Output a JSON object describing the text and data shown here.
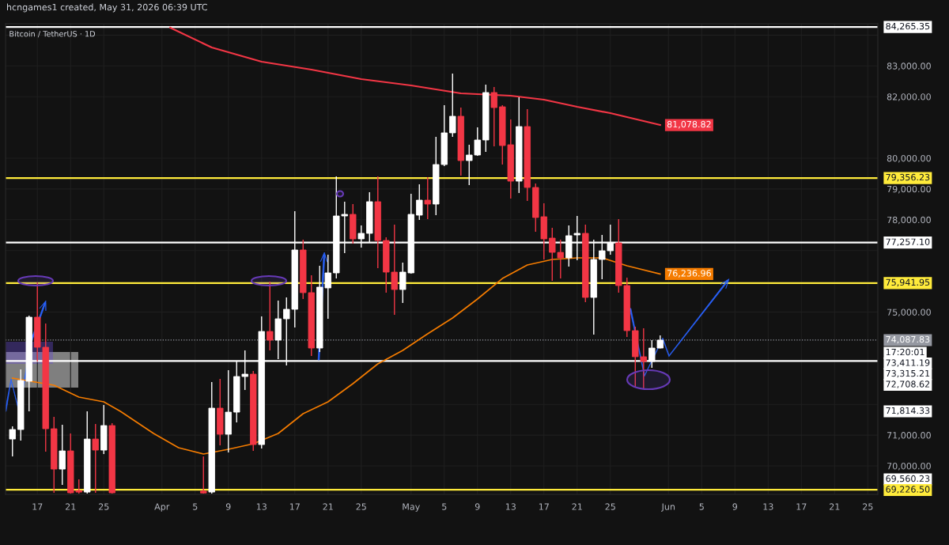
{
  "chart_data": {
    "type": "candlestick",
    "title": "hcngames1 created, May 31, 2026 06:39 UTC",
    "subtitle": "Bitcoin / TetherUS · 1D",
    "series": [
      {
        "x": [
          "2026-03-14",
          "2026-03-15",
          "2026-03-16",
          "2026-03-17",
          "2026-03-18",
          "2026-03-19",
          "2026-03-20",
          "2026-03-21",
          "2026-03-22",
          "2026-03-23",
          "2026-03-24",
          "2026-03-25",
          "2026-03-26",
          "2026-04-06",
          "2026-04-07",
          "2026-04-08",
          "2026-04-09",
          "2026-04-10",
          "2026-04-11",
          "2026-04-12",
          "2026-04-13",
          "2026-04-14",
          "2026-04-15",
          "2026-04-16",
          "2026-04-17",
          "2026-04-18",
          "2026-04-19",
          "2026-04-20",
          "2026-04-21",
          "2026-04-22",
          "2026-04-23",
          "2026-04-24",
          "2026-04-25",
          "2026-04-26",
          "2026-04-27",
          "2026-04-28",
          "2026-04-29",
          "2026-04-30",
          "2026-05-01",
          "2026-05-02",
          "2026-05-03",
          "2026-05-04",
          "2026-05-05",
          "2026-05-06",
          "2026-05-07",
          "2026-05-08",
          "2026-05-09",
          "2026-05-10",
          "2026-05-11",
          "2026-05-12",
          "2026-05-13",
          "2026-05-14",
          "2026-05-15",
          "2026-05-16",
          "2026-05-17",
          "2026-05-18",
          "2026-05-19",
          "2026-05-20",
          "2026-05-21",
          "2026-05-22",
          "2026-05-23",
          "2026-05-24",
          "2026-05-25",
          "2026-05-26",
          "2026-05-27",
          "2026-05-28",
          "2026-05-29",
          "2026-05-30",
          "2026-05-31"
        ],
        "ohlc": [
          [
            70874,
            71285,
            70308,
            71183
          ],
          [
            71183,
            73136,
            70823,
            72776
          ],
          [
            72751,
            74884,
            71774,
            74833
          ],
          [
            74833,
            75964,
            73393,
            73856
          ],
          [
            73856,
            74627,
            70463,
            71208
          ],
          [
            71208,
            71594,
            69126,
            69897
          ],
          [
            69897,
            71337,
            69383,
            70488
          ],
          [
            70488,
            71054,
            69100,
            69126
          ],
          [
            69200,
            69563,
            69100,
            69150
          ],
          [
            69150,
            71774,
            69100,
            70874
          ],
          [
            70874,
            71362,
            69126,
            70514
          ],
          [
            70514,
            71979,
            70386,
            71311
          ],
          [
            71311,
            71388,
            69100,
            69126
          ],
          [
            69180,
            70308,
            69100,
            69120
          ],
          [
            69150,
            72725,
            69100,
            71877
          ],
          [
            71877,
            72828,
            70668,
            71028
          ],
          [
            71028,
            73111,
            70437,
            71748
          ],
          [
            71748,
            73393,
            71414,
            72905
          ],
          [
            72905,
            73753,
            72468,
            72982
          ],
          [
            72982,
            73085,
            70488,
            70694
          ],
          [
            70694,
            74859,
            70566,
            74370
          ],
          [
            74370,
            75990,
            73753,
            74087
          ],
          [
            74087,
            75373,
            73470,
            74781
          ],
          [
            74781,
            75476,
            73265,
            75090
          ],
          [
            75090,
            78278,
            74499,
            77018
          ],
          [
            77018,
            77352,
            75424,
            75630
          ],
          [
            75630,
            76195,
            73573,
            73830
          ],
          [
            73830,
            76504,
            73702,
            75810
          ],
          [
            75784,
            76864,
            74781,
            76272
          ],
          [
            76272,
            79409,
            76092,
            78123
          ],
          [
            78123,
            78586,
            76915,
            78175
          ],
          [
            78175,
            78509,
            77224,
            77378
          ],
          [
            77378,
            77815,
            77095,
            77558
          ],
          [
            77558,
            78894,
            77249,
            78586
          ],
          [
            78586,
            79409,
            76427,
            77326
          ],
          [
            77326,
            77429,
            75630,
            76298
          ],
          [
            76298,
            77841,
            74910,
            75733
          ],
          [
            75733,
            76607,
            75296,
            76298
          ],
          [
            76272,
            78843,
            76250,
            78175
          ],
          [
            78149,
            79152,
            77995,
            78637
          ],
          [
            78637,
            79383,
            78021,
            78509
          ],
          [
            78509,
            80694,
            78149,
            79794
          ],
          [
            79794,
            81722,
            79743,
            80823
          ],
          [
            80823,
            82751,
            80694,
            81363
          ],
          [
            81363,
            81645,
            79434,
            79923
          ],
          [
            79923,
            80437,
            79126,
            80103
          ],
          [
            80103,
            81003,
            80077,
            80591
          ],
          [
            80591,
            82391,
            80206,
            82134
          ],
          [
            82134,
            82314,
            80386,
            81645
          ],
          [
            81671,
            81722,
            79794,
            80411
          ],
          [
            80437,
            81260,
            78689,
            79254
          ],
          [
            79254,
            81979,
            78869,
            81028
          ],
          [
            81028,
            81594,
            78612,
            79049
          ],
          [
            79049,
            79177,
            77609,
            78072
          ],
          [
            78098,
            78535,
            76710,
            77378
          ],
          [
            77404,
            77738,
            76015,
            76941
          ],
          [
            76941,
            77352,
            76092,
            76761
          ],
          [
            76761,
            77815,
            76478,
            77481
          ],
          [
            77506,
            78123,
            76684,
            77558
          ],
          [
            77558,
            77841,
            75321,
            75476
          ],
          [
            75476,
            77352,
            74267,
            76710
          ],
          [
            76710,
            77506,
            76067,
            76992
          ],
          [
            76992,
            77841,
            76864,
            77249
          ],
          [
            77249,
            78021,
            75630,
            75861
          ],
          [
            75861,
            76118,
            74190,
            74396
          ],
          [
            74396,
            74524,
            72545,
            73548
          ],
          [
            73548,
            74473,
            72494,
            73393
          ],
          [
            73393,
            74087,
            73188,
            73830
          ],
          [
            73830,
            74242,
            73820,
            74087.83
          ]
        ],
        "colors": [
          "#ffffff",
          "#ffffff",
          "#ffffff",
          "#f23645",
          "#f23645",
          "#f23645",
          "#ffffff",
          "#f23645",
          "#f23645",
          "#ffffff",
          "#f23645",
          "#ffffff",
          "#f23645",
          "#f23645",
          "#ffffff",
          "#f23645",
          "#ffffff",
          "#ffffff",
          "#ffffff",
          "#f23645",
          "#ffffff",
          "#f23645",
          "#ffffff",
          "#ffffff",
          "#ffffff",
          "#f23645",
          "#f23645",
          "#ffffff",
          "#ffffff",
          "#ffffff",
          "#ffffff",
          "#f23645",
          "#ffffff",
          "#ffffff",
          "#f23645",
          "#f23645",
          "#f23645",
          "#ffffff",
          "#ffffff",
          "#ffffff",
          "#f23645",
          "#ffffff",
          "#ffffff",
          "#ffffff",
          "#f23645",
          "#ffffff",
          "#ffffff",
          "#ffffff",
          "#f23645",
          "#f23645",
          "#f23645",
          "#ffffff",
          "#f23645",
          "#f23645",
          "#f23645",
          "#f23645",
          "#f23645",
          "#ffffff",
          "#ffffff",
          "#f23645",
          "#ffffff",
          "#ffffff",
          "#ffffff",
          "#f23645",
          "#f23645",
          "#f23645",
          "#f23645",
          "#ffffff",
          "#ffffff"
        ]
      },
      {
        "type": "line",
        "color": "#f23645",
        "x": [
          "2026-04-02",
          "2026-04-07",
          "2026-04-13",
          "2026-04-19",
          "2026-04-25",
          "2026-05-01",
          "2026-05-07",
          "2026-05-13",
          "2026-05-17",
          "2026-05-21",
          "2026-05-25",
          "2026-05-31"
        ],
        "values": [
          84242,
          83599,
          83136,
          82879,
          82571,
          82365,
          82108,
          82031,
          81902,
          81671,
          81465,
          81078.82
        ],
        "value_labels": [
          null,
          null,
          null,
          null,
          null,
          null,
          null,
          null,
          null,
          null,
          null,
          "81,078.82"
        ]
      },
      {
        "type": "line",
        "color": "#f57c00",
        "x": [
          "2026-03-14",
          "2026-03-19",
          "2026-03-22",
          "2026-03-25",
          "2026-03-27",
          "2026-03-31",
          "2026-04-03",
          "2026-04-06",
          "2026-04-09",
          "2026-04-12",
          "2026-04-15",
          "2026-04-18",
          "2026-04-21",
          "2026-04-24",
          "2026-04-27",
          "2026-04-30",
          "2026-05-03",
          "2026-05-06",
          "2026-05-09",
          "2026-05-12",
          "2026-05-15",
          "2026-05-18",
          "2026-05-21",
          "2026-05-24",
          "2026-05-27",
          "2026-05-31"
        ],
        "values": [
          72853,
          72622,
          72237,
          72082,
          71774,
          71054,
          70591,
          70386,
          70540,
          70720,
          71054,
          71697,
          72082,
          72674,
          73316,
          73753,
          74293,
          74807,
          75424,
          76092,
          76530,
          76710,
          76761,
          76761,
          76504,
          76236.96
        ],
        "value_labels": [
          null,
          null,
          null,
          null,
          null,
          null,
          null,
          null,
          null,
          null,
          null,
          null,
          null,
          null,
          null,
          null,
          null,
          null,
          null,
          null,
          null,
          null,
          null,
          null,
          null,
          "76,236.96"
        ]
      }
    ],
    "ref_lines": [
      {
        "axis": "y",
        "value": 84265.35,
        "label": "84,265.35",
        "color": "#ffffff"
      },
      {
        "axis": "y",
        "value": 79356.23,
        "label": "79,356.23",
        "color": "#ffeb3b"
      },
      {
        "axis": "y",
        "value": 77257.1,
        "label": "77,257.10",
        "color": "#ffffff"
      },
      {
        "axis": "y",
        "value": 75941.95,
        "label": "75,941.95",
        "color": "#ffeb3b"
      },
      {
        "axis": "y",
        "value": 74087.83,
        "label": "74,087.83",
        "color": "#9598a1",
        "line_style": "dotted"
      },
      {
        "axis": "y",
        "value": 73411.19,
        "label": "73,411.19",
        "color": "#ffffff"
      },
      {
        "axis": "y",
        "value": 69226.5,
        "label": "69,226.50",
        "color": "#ffeb3b"
      }
    ],
    "annotations": [
      "17:20:01",
      "73,315.21",
      "72,708.62",
      "71,814.33",
      "69,560.23"
    ],
    "xlim": [
      "2026-03-13T04:00",
      "2026-06-26T05:00"
    ],
    "xticks": [
      {
        "value": "2026-03-17",
        "label": "17"
      },
      {
        "value": "2026-03-21",
        "label": "21"
      },
      {
        "value": "2026-03-25",
        "label": "25"
      },
      {
        "value": "2026-04-01",
        "label": "Apr"
      },
      {
        "value": "2026-04-05",
        "label": "5"
      },
      {
        "value": "2026-04-09",
        "label": "9"
      },
      {
        "value": "2026-04-13",
        "label": "13"
      },
      {
        "value": "2026-04-17",
        "label": "17"
      },
      {
        "value": "2026-04-21",
        "label": "21"
      },
      {
        "value": "2026-04-25",
        "label": "25"
      },
      {
        "value": "2026-05-01",
        "label": "May"
      },
      {
        "value": "2026-05-05",
        "label": "5"
      },
      {
        "value": "2026-05-09",
        "label": "9"
      },
      {
        "value": "2026-05-13",
        "label": "13"
      },
      {
        "value": "2026-05-17",
        "label": "17"
      },
      {
        "value": "2026-05-21",
        "label": "21"
      },
      {
        "value": "2026-05-25",
        "label": "25"
      },
      {
        "value": "2026-06-01",
        "label": "Jun"
      },
      {
        "value": "2026-06-05",
        "label": "5"
      },
      {
        "value": "2026-06-09",
        "label": "9"
      },
      {
        "value": "2026-06-13",
        "label": "13"
      },
      {
        "value": "2026-06-17",
        "label": "17"
      },
      {
        "value": "2026-06-21",
        "label": "21"
      },
      {
        "value": "2026-06-25",
        "label": "25"
      }
    ],
    "ylim": [
      69075,
      84370
    ],
    "yticks": [
      {
        "value": 70000,
        "label": "70,000.00"
      },
      {
        "value": 71000,
        "label": "71,000.00"
      },
      {
        "value": 72000,
        "label": null
      },
      {
        "value": 75000,
        "label": "75,000.00"
      },
      {
        "value": 77000,
        "label": null
      },
      {
        "value": 78000,
        "label": "78,000.00"
      },
      {
        "value": 79000,
        "label": "79,000.00"
      },
      {
        "value": 80000,
        "label": "80,000.00"
      },
      {
        "value": 82000,
        "label": "82,000.00"
      },
      {
        "value": 83000,
        "label": "83,000.00"
      },
      {
        "value": 84000,
        "label": null
      }
    ],
    "grid": true
  }
}
